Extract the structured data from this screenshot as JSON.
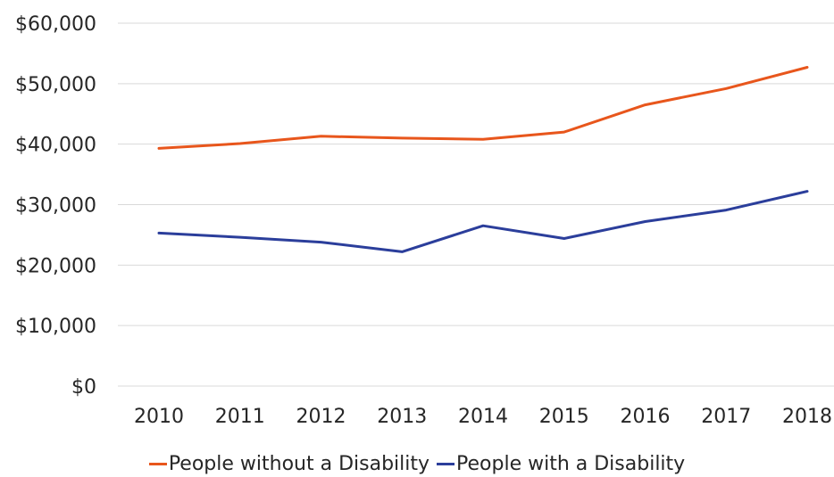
{
  "chart_data": {
    "type": "line",
    "title": "",
    "xlabel": "",
    "ylabel": "",
    "categories": [
      "2010",
      "2011",
      "2012",
      "2013",
      "2014",
      "2015",
      "2016",
      "2017",
      "2018"
    ],
    "ylim": [
      0,
      60000
    ],
    "yticks": [
      0,
      10000,
      20000,
      30000,
      40000,
      50000,
      60000
    ],
    "ytick_labels": [
      "$0",
      "$10,000",
      "$20,000",
      "$30,000",
      "$40,000",
      "$50,000",
      "$60,000"
    ],
    "grid": true,
    "legend_position": "bottom",
    "series": [
      {
        "name": "People without a Disability",
        "color": "#E8561C",
        "values": [
          39300,
          40100,
          41300,
          41000,
          40800,
          42000,
          46500,
          49200,
          52700
        ]
      },
      {
        "name": "People with a Disability",
        "color": "#2B3E9B",
        "values": [
          25300,
          24600,
          23800,
          22200,
          26500,
          24400,
          27200,
          29100,
          32200
        ]
      }
    ]
  }
}
